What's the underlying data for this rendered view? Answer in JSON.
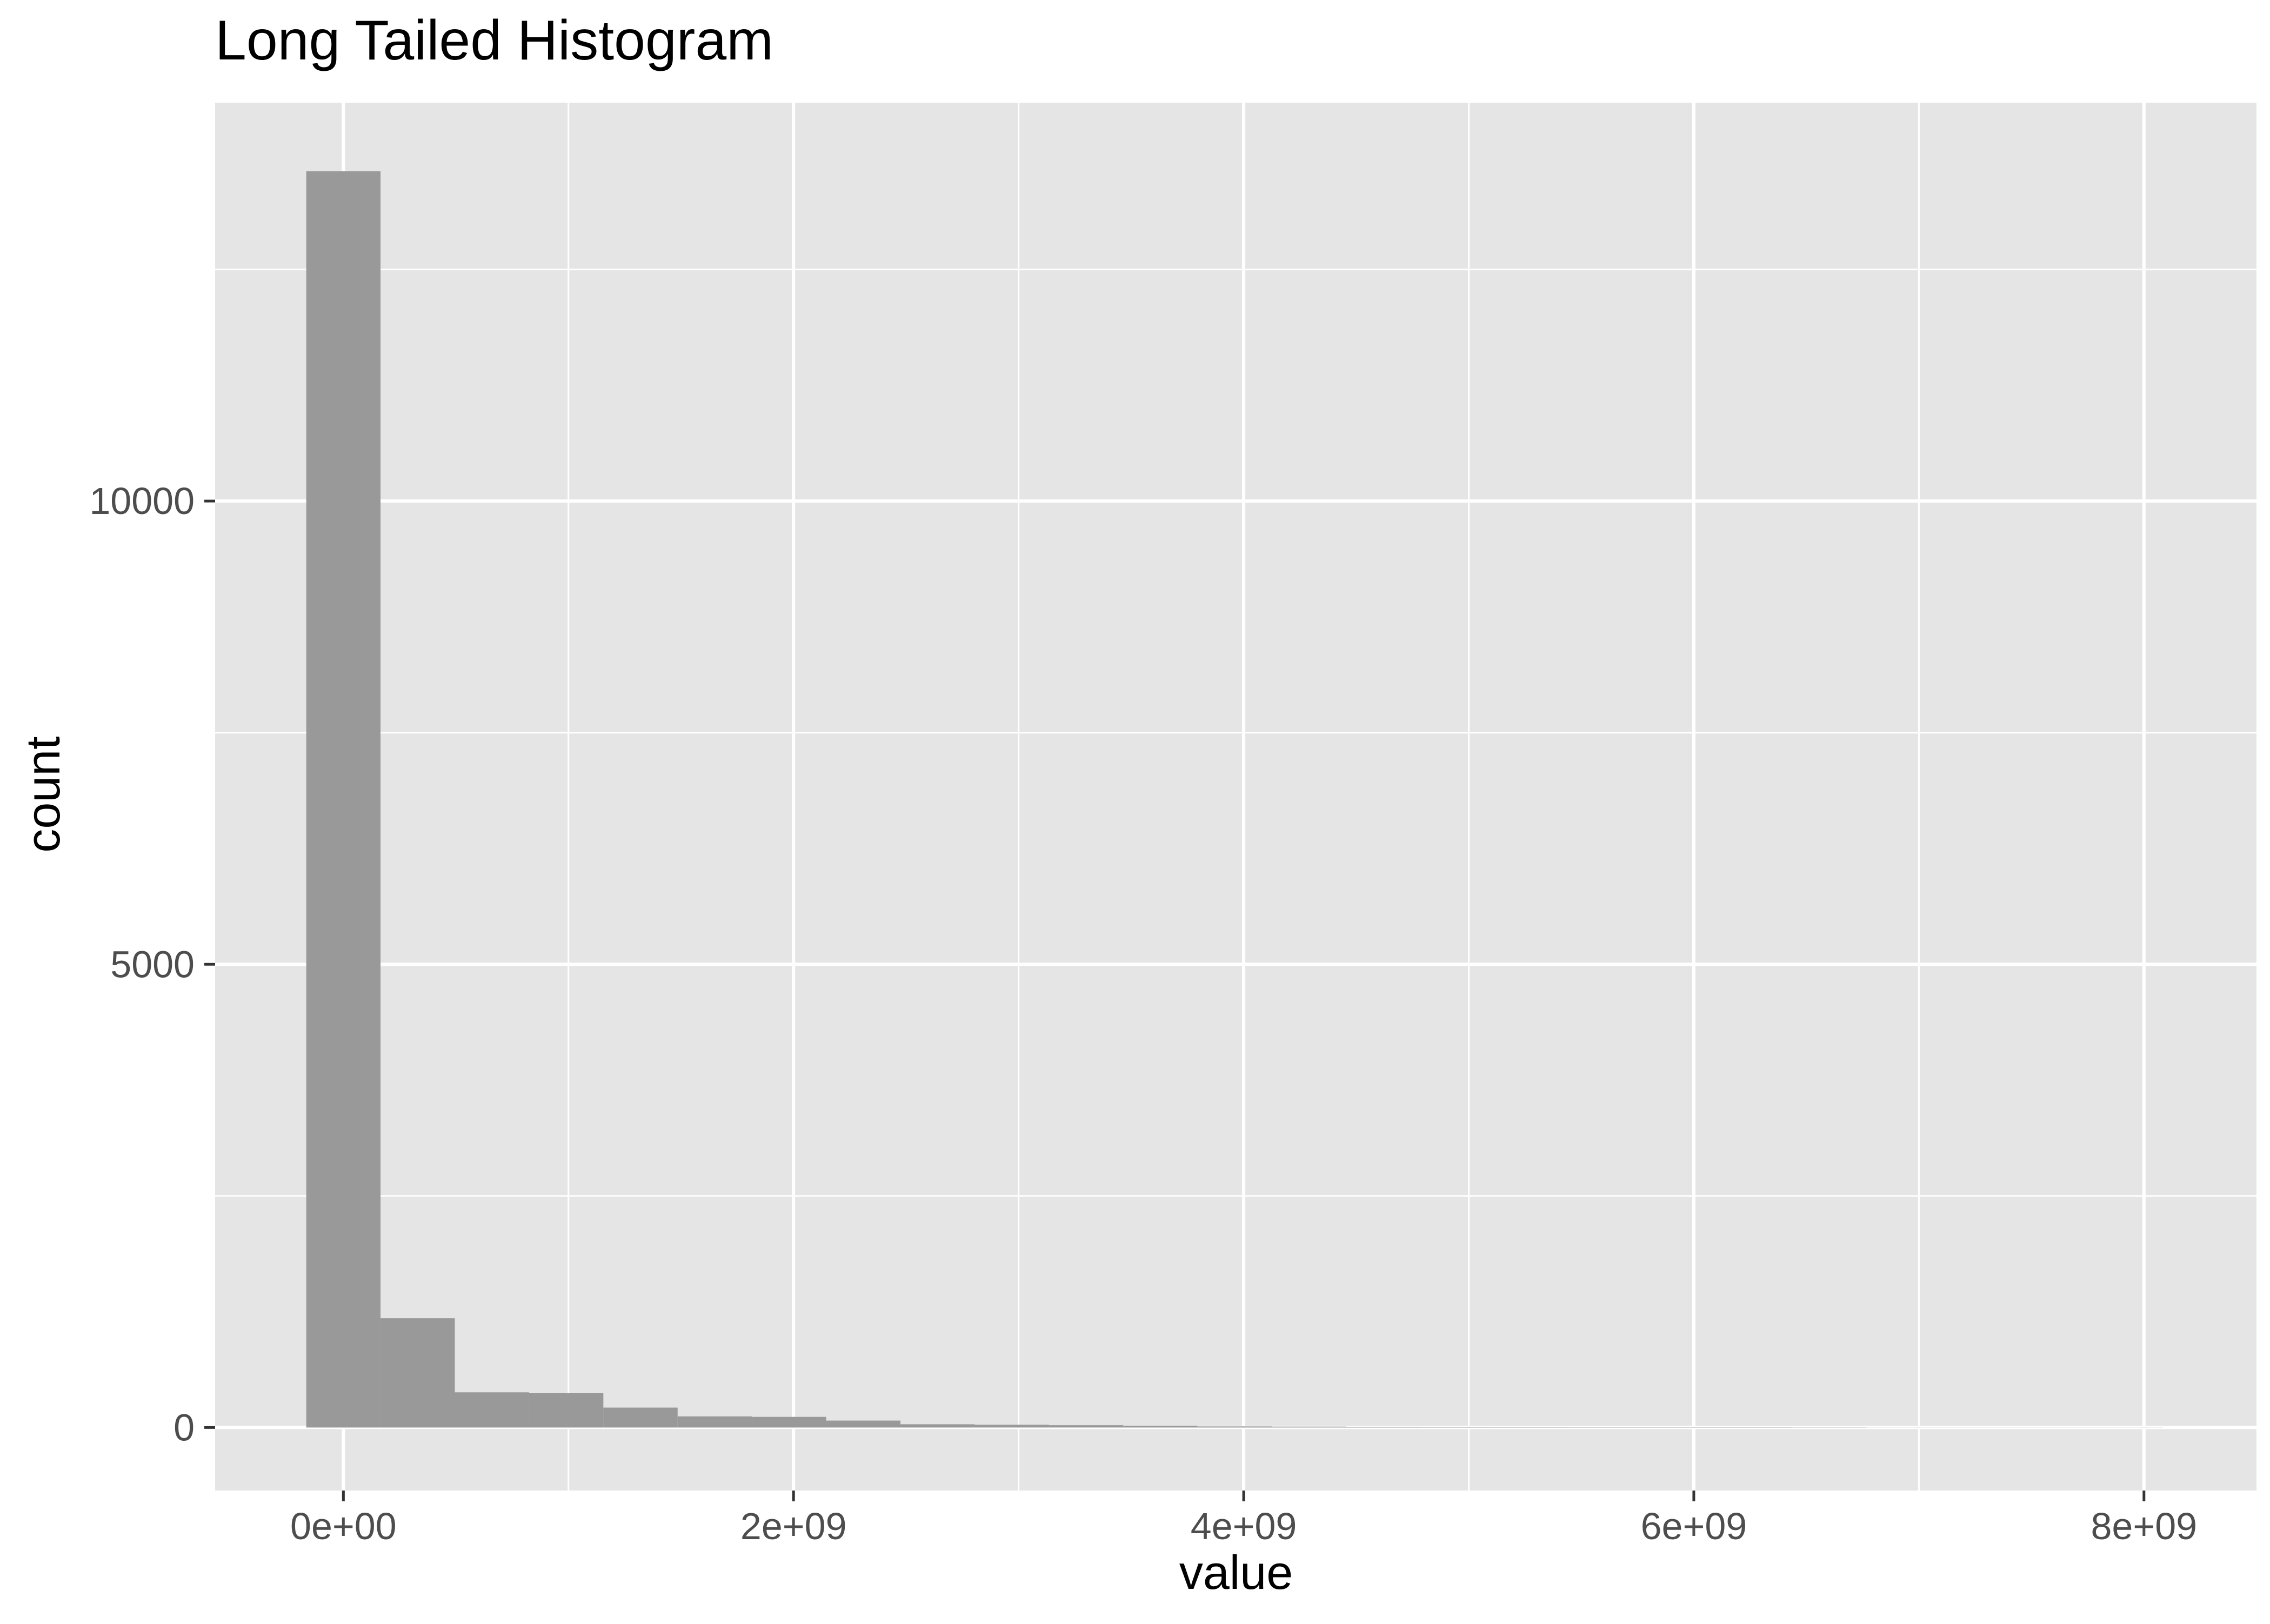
{
  "chart_data": {
    "type": "bar",
    "title": "Long Tailed Histogram",
    "xlabel": "value",
    "ylabel": "count",
    "xlim": [
      -570000000,
      8500000000
    ],
    "ylim": [
      -680,
      14300
    ],
    "x_ticks": [
      {
        "value": 0,
        "label": "0e+00"
      },
      {
        "value": 2000000000,
        "label": "2e+09"
      },
      {
        "value": 4000000000,
        "label": "4e+09"
      },
      {
        "value": 6000000000,
        "label": "6e+09"
      },
      {
        "value": 8000000000,
        "label": "8e+09"
      }
    ],
    "y_ticks": [
      {
        "value": 0,
        "label": "0"
      },
      {
        "value": 5000,
        "label": "5000"
      },
      {
        "value": 10000,
        "label": "10000"
      }
    ],
    "minor_x": [
      1000000000,
      3000000000,
      5000000000,
      7000000000
    ],
    "minor_y": [
      2500,
      7500,
      12500
    ],
    "grid": true,
    "legend": "none",
    "colors": {
      "panel": "#e5e5e5",
      "grid": "#ffffff",
      "bar": "#999999",
      "tick": "#333333"
    },
    "bins": [
      {
        "x0": -165000000,
        "x1": 165000000,
        "count": 13560
      },
      {
        "x0": 165000000,
        "x1": 495000000,
        "count": 1180
      },
      {
        "x0": 495000000,
        "x1": 825000000,
        "count": 380
      },
      {
        "x0": 825000000,
        "x1": 1155000000,
        "count": 370
      },
      {
        "x0": 1155000000,
        "x1": 1485000000,
        "count": 215
      },
      {
        "x0": 1485000000,
        "x1": 1815000000,
        "count": 120
      },
      {
        "x0": 1815000000,
        "x1": 2145000000,
        "count": 115
      },
      {
        "x0": 2145000000,
        "x1": 2475000000,
        "count": 75
      },
      {
        "x0": 2475000000,
        "x1": 2805000000,
        "count": 35
      },
      {
        "x0": 2805000000,
        "x1": 3135000000,
        "count": 30
      },
      {
        "x0": 3135000000,
        "x1": 3465000000,
        "count": 25
      },
      {
        "x0": 3465000000,
        "x1": 3795000000,
        "count": 18
      },
      {
        "x0": 3795000000,
        "x1": 4125000000,
        "count": 12
      },
      {
        "x0": 4125000000,
        "x1": 4455000000,
        "count": 10
      },
      {
        "x0": 4455000000,
        "x1": 4785000000,
        "count": 8
      },
      {
        "x0": 4785000000,
        "x1": 5115000000,
        "count": 6
      },
      {
        "x0": 5115000000,
        "x1": 5445000000,
        "count": 5
      },
      {
        "x0": 5445000000,
        "x1": 5775000000,
        "count": 4
      },
      {
        "x0": 5775000000,
        "x1": 6105000000,
        "count": 3
      },
      {
        "x0": 6105000000,
        "x1": 6435000000,
        "count": 3
      },
      {
        "x0": 6435000000,
        "x1": 6765000000,
        "count": 2
      },
      {
        "x0": 6765000000,
        "x1": 7095000000,
        "count": 1
      },
      {
        "x0": 7095000000,
        "x1": 7425000000,
        "count": 1
      },
      {
        "x0": 7425000000,
        "x1": 7755000000,
        "count": 1
      },
      {
        "x0": 7755000000,
        "x1": 8085000000,
        "count": 1
      }
    ]
  }
}
